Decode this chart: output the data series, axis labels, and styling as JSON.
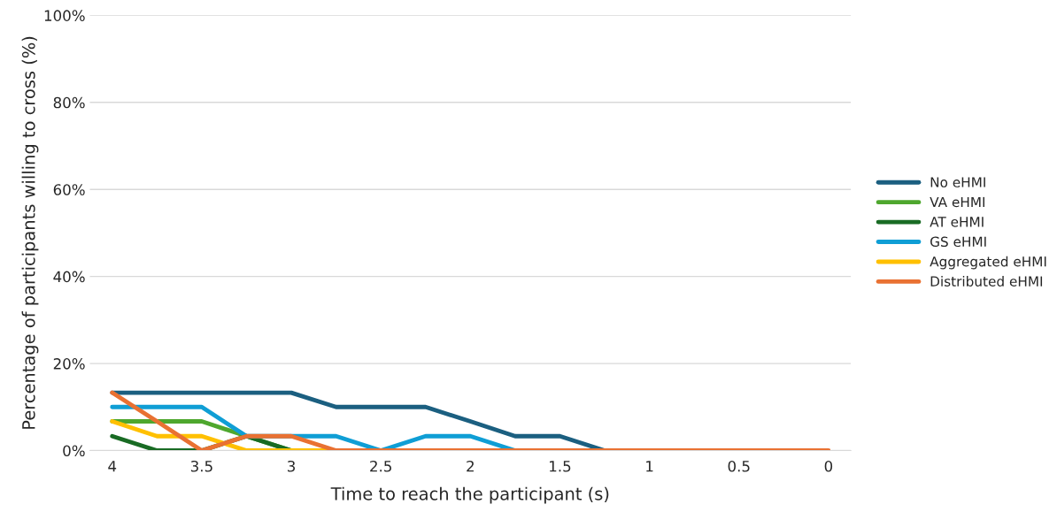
{
  "chart_data": {
    "type": "line",
    "xlabel": "Time to reach the participant (s)",
    "ylabel": "Percentage of participants willing to cross (%)",
    "categories": [
      "4",
      null,
      "3.5",
      null,
      "3",
      null,
      "2.5",
      null,
      "2",
      null,
      "1.5",
      null,
      "1",
      null,
      "0.5",
      null,
      "0"
    ],
    "ylim": [
      0,
      100
    ],
    "yticks": [
      {
        "value": 0,
        "label": "0%"
      },
      {
        "value": 20,
        "label": "20%"
      },
      {
        "value": 40,
        "label": "40%"
      },
      {
        "value": 60,
        "label": "60%"
      },
      {
        "value": 80,
        "label": "80%"
      },
      {
        "value": 100,
        "label": "100%"
      }
    ],
    "grid": "y",
    "legend": "right",
    "marker": "none",
    "line_style": "solid",
    "series": [
      {
        "name": "No eHMI",
        "color": "#1b5f80",
        "values": [
          13.3,
          13.3,
          13.3,
          13.3,
          13.3,
          10,
          10,
          10,
          6.7,
          3.3,
          3.3,
          0,
          null,
          null,
          null,
          null,
          null
        ]
      },
      {
        "name": "VA eHMI",
        "color": "#4ea72e",
        "values": [
          6.7,
          6.7,
          6.7,
          3.3,
          0,
          null,
          null,
          null,
          null,
          null,
          null,
          null,
          null,
          null,
          null,
          null,
          null
        ]
      },
      {
        "name": "AT eHMI",
        "color": "#196b24",
        "values": [
          3.3,
          0,
          0,
          3.3,
          0,
          null,
          null,
          null,
          null,
          null,
          null,
          null,
          null,
          null,
          null,
          null,
          null
        ]
      },
      {
        "name": "GS eHMI",
        "color": "#0f9ed5",
        "values": [
          10,
          10,
          10,
          3.3,
          3.3,
          3.3,
          0,
          3.3,
          3.3,
          0,
          null,
          null,
          null,
          null,
          null,
          null,
          null
        ]
      },
      {
        "name": "Aggregated eHMI",
        "color": "#ffc000",
        "values": [
          6.7,
          3.3,
          3.3,
          0,
          0,
          0,
          null,
          null,
          null,
          null,
          null,
          null,
          null,
          null,
          null,
          null,
          null
        ]
      },
      {
        "name": "Distributed eHMI",
        "color": "#e97132",
        "values": [
          13.3,
          6.7,
          0,
          3.3,
          3.3,
          0,
          0,
          0,
          0,
          0,
          0,
          0,
          0,
          0,
          0,
          0,
          0
        ]
      }
    ]
  }
}
